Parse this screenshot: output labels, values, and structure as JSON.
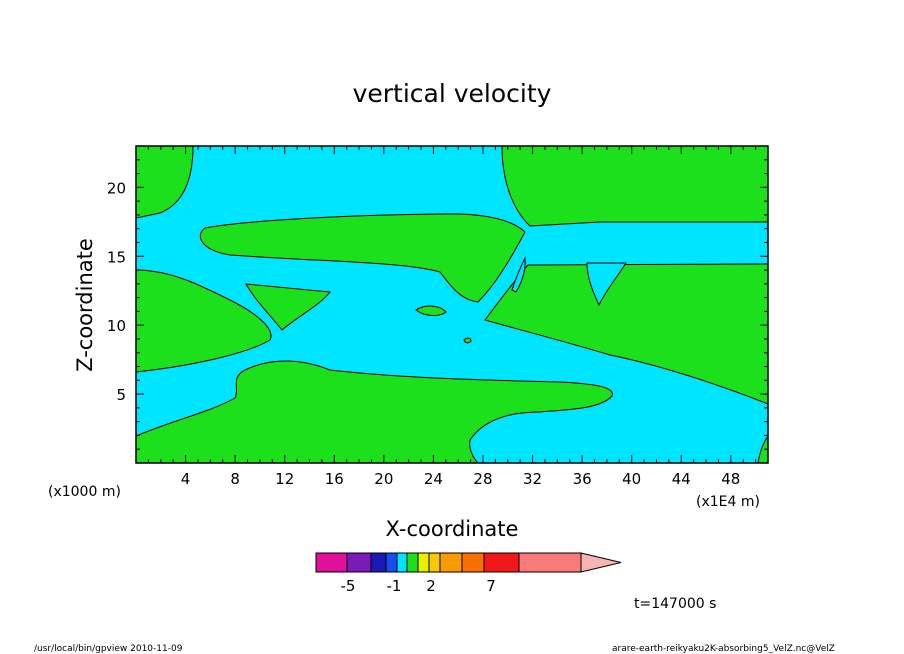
{
  "chart_data": {
    "type": "heatmap",
    "title": "vertical velocity",
    "xlabel": "X-coordinate",
    "ylabel": "Z-coordinate",
    "x_unit_left": "(x1000 m)",
    "x_unit_right": "(x1E4 m)",
    "xlim": [
      0,
      51
    ],
    "ylim": [
      0,
      23
    ],
    "x_ticks": [
      4,
      8,
      12,
      16,
      20,
      24,
      28,
      32,
      36,
      40,
      44,
      48
    ],
    "y_ticks": [
      5,
      10,
      15,
      20
    ],
    "contour_fill_colors": {
      "negative": "#00e5ff",
      "positive": "#1de01d"
    },
    "colorbar": {
      "colors": [
        "#e0109a",
        "#7a1ab8",
        "#1a1ab8",
        "#1a4cf0",
        "#00e5ff",
        "#1de01d",
        "#e8f000",
        "#f8c800",
        "#f89a00",
        "#f87000",
        "#f01818",
        "#f87a7a",
        "#f8b4b4"
      ],
      "tick_labels": [
        "-5",
        "-1",
        "2",
        "7"
      ]
    },
    "time_label": "t=147000 s"
  },
  "footer": {
    "left": "/usr/local/bin/gpview   2010-11-09",
    "right": "arare-earth-reikyaku2K-absorbing5_VelZ.nc@VelZ"
  }
}
